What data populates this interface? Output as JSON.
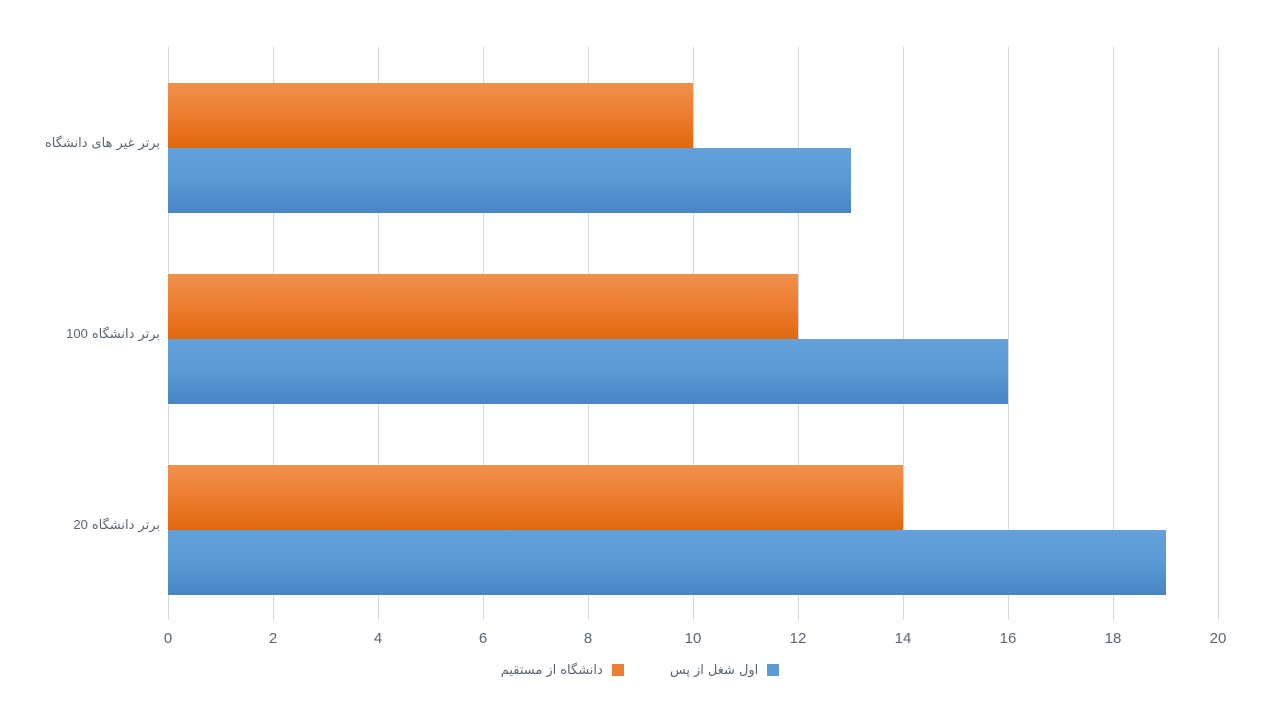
{
  "chart_data": {
    "type": "bar",
    "orientation": "horizontal",
    "title": "",
    "xlabel": "",
    "ylabel": "",
    "categories": [
      "دانشگاه های غیر برتر",
      "100 دانشگاه برتر",
      "20 دانشگاه برتر"
    ],
    "series": [
      {
        "name": "مستقیم از دانشگاه",
        "color": "#ED7D31",
        "values": [
          10,
          12,
          14
        ]
      },
      {
        "name": "پس از شغل اول",
        "color": "#5B9BD5",
        "values": [
          13,
          16,
          19
        ]
      }
    ],
    "x_ticks": [
      0,
      2,
      4,
      6,
      8,
      10,
      12,
      14,
      16,
      18,
      20
    ],
    "xlim": [
      0,
      20
    ],
    "grid": true,
    "legend_position": "bottom"
  },
  "colors": {
    "background": "#ffffff",
    "gridline": "#d9d9d9",
    "text": "#5a6672",
    "series_direct": "#ED7D31",
    "series_after_first_job": "#5B9BD5"
  }
}
